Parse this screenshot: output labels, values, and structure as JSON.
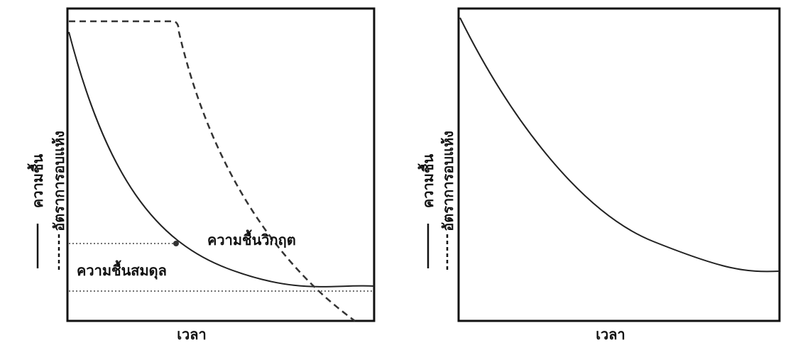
{
  "panels": [
    {
      "y_label_solid": "ความชื้น",
      "y_label_dashed": "อัตราการอบแห้ง",
      "x_label": "เวลา",
      "annotations": [
        "ความชื้นวิกฤต",
        "ความชื้นสมดุล"
      ]
    },
    {
      "y_label_solid": "ความชื้น",
      "y_label_dashed": "อัตราการอบแห้ง",
      "x_label": "เวลา"
    }
  ]
}
